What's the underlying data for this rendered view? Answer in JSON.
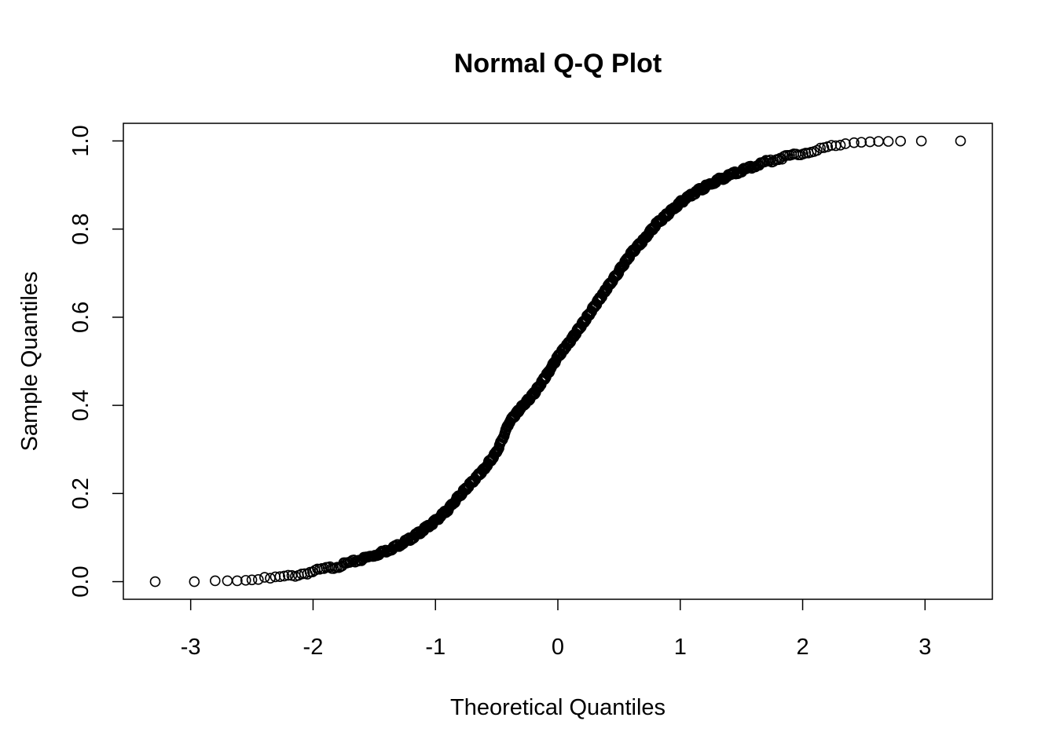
{
  "chart_data": {
    "type": "scatter",
    "title": "Normal Q-Q Plot",
    "xlabel": "Theoretical Quantiles",
    "ylabel": "Sample Quantiles",
    "xlim": [
      -3.55,
      3.55
    ],
    "ylim": [
      -0.04,
      1.04
    ],
    "x_ticks": [
      -3,
      -2,
      -1,
      0,
      1,
      2,
      3
    ],
    "x_tick_labels": [
      "-3",
      "-2",
      "-1",
      "0",
      "1",
      "2",
      "3"
    ],
    "y_ticks": [
      0.0,
      0.2,
      0.4,
      0.6,
      0.8,
      1.0
    ],
    "y_tick_labels": [
      "0.0",
      "0.2",
      "0.4",
      "0.6",
      "0.8",
      "1.0"
    ],
    "grid": false,
    "marker": "open-circle",
    "point_color": "#000000",
    "curve_points": [
      [
        -3.29,
        0.0
      ],
      [
        -2.97,
        0.0
      ],
      [
        -2.8,
        0.002
      ],
      [
        -2.7,
        0.002
      ],
      [
        -2.62,
        0.002
      ],
      [
        -2.55,
        0.003
      ],
      [
        -2.48,
        0.004
      ],
      [
        -2.4,
        0.006
      ],
      [
        -2.3,
        0.009
      ],
      [
        -2.2,
        0.012
      ],
      [
        -2.1,
        0.017
      ],
      [
        -2.0,
        0.023
      ],
      [
        -1.9,
        0.029
      ],
      [
        -1.8,
        0.035
      ],
      [
        -1.7,
        0.043
      ],
      [
        -1.6,
        0.051
      ],
      [
        -1.5,
        0.06
      ],
      [
        -1.4,
        0.07
      ],
      [
        -1.3,
        0.083
      ],
      [
        -1.2,
        0.098
      ],
      [
        -1.1,
        0.117
      ],
      [
        -1.0,
        0.138
      ],
      [
        -0.9,
        0.163
      ],
      [
        -0.8,
        0.196
      ],
      [
        -0.7,
        0.226
      ],
      [
        -0.6,
        0.256
      ],
      [
        -0.5,
        0.295
      ],
      [
        -0.45,
        0.325
      ],
      [
        -0.4,
        0.36
      ],
      [
        -0.3,
        0.395
      ],
      [
        -0.2,
        0.425
      ],
      [
        -0.1,
        0.465
      ],
      [
        0.0,
        0.51
      ],
      [
        0.1,
        0.545
      ],
      [
        0.2,
        0.585
      ],
      [
        0.3,
        0.625
      ],
      [
        0.4,
        0.665
      ],
      [
        0.5,
        0.705
      ],
      [
        0.6,
        0.745
      ],
      [
        0.7,
        0.775
      ],
      [
        0.8,
        0.81
      ],
      [
        0.9,
        0.835
      ],
      [
        1.0,
        0.86
      ],
      [
        1.1,
        0.88
      ],
      [
        1.2,
        0.895
      ],
      [
        1.3,
        0.91
      ],
      [
        1.4,
        0.922
      ],
      [
        1.5,
        0.932
      ],
      [
        1.6,
        0.943
      ],
      [
        1.7,
        0.952
      ],
      [
        1.8,
        0.96
      ],
      [
        1.9,
        0.967
      ],
      [
        2.0,
        0.973
      ],
      [
        2.1,
        0.979
      ],
      [
        2.2,
        0.985
      ],
      [
        2.3,
        0.989
      ],
      [
        2.4,
        0.993
      ],
      [
        2.5,
        0.996
      ],
      [
        2.6,
        0.998
      ],
      [
        2.7,
        0.999
      ],
      [
        2.8,
        0.9995
      ],
      [
        2.97,
        0.9998
      ],
      [
        3.29,
        1.0
      ]
    ],
    "tail_points": [
      [
        -3.29,
        0.0
      ],
      [
        -2.97,
        0.0
      ],
      [
        -2.8,
        0.002
      ],
      [
        -2.7,
        0.002
      ],
      [
        -2.62,
        0.002
      ],
      [
        -2.55,
        0.003
      ],
      [
        -2.5,
        0.004
      ],
      [
        2.42,
        0.996
      ],
      [
        2.48,
        0.997
      ],
      [
        2.55,
        0.998
      ],
      [
        2.62,
        0.999
      ],
      [
        2.7,
        0.999
      ],
      [
        2.8,
        0.9995
      ],
      [
        2.97,
        0.9998
      ],
      [
        3.29,
        1.0
      ]
    ],
    "dense_range": [
      -2.45,
      2.38
    ],
    "n_dense": 900
  }
}
